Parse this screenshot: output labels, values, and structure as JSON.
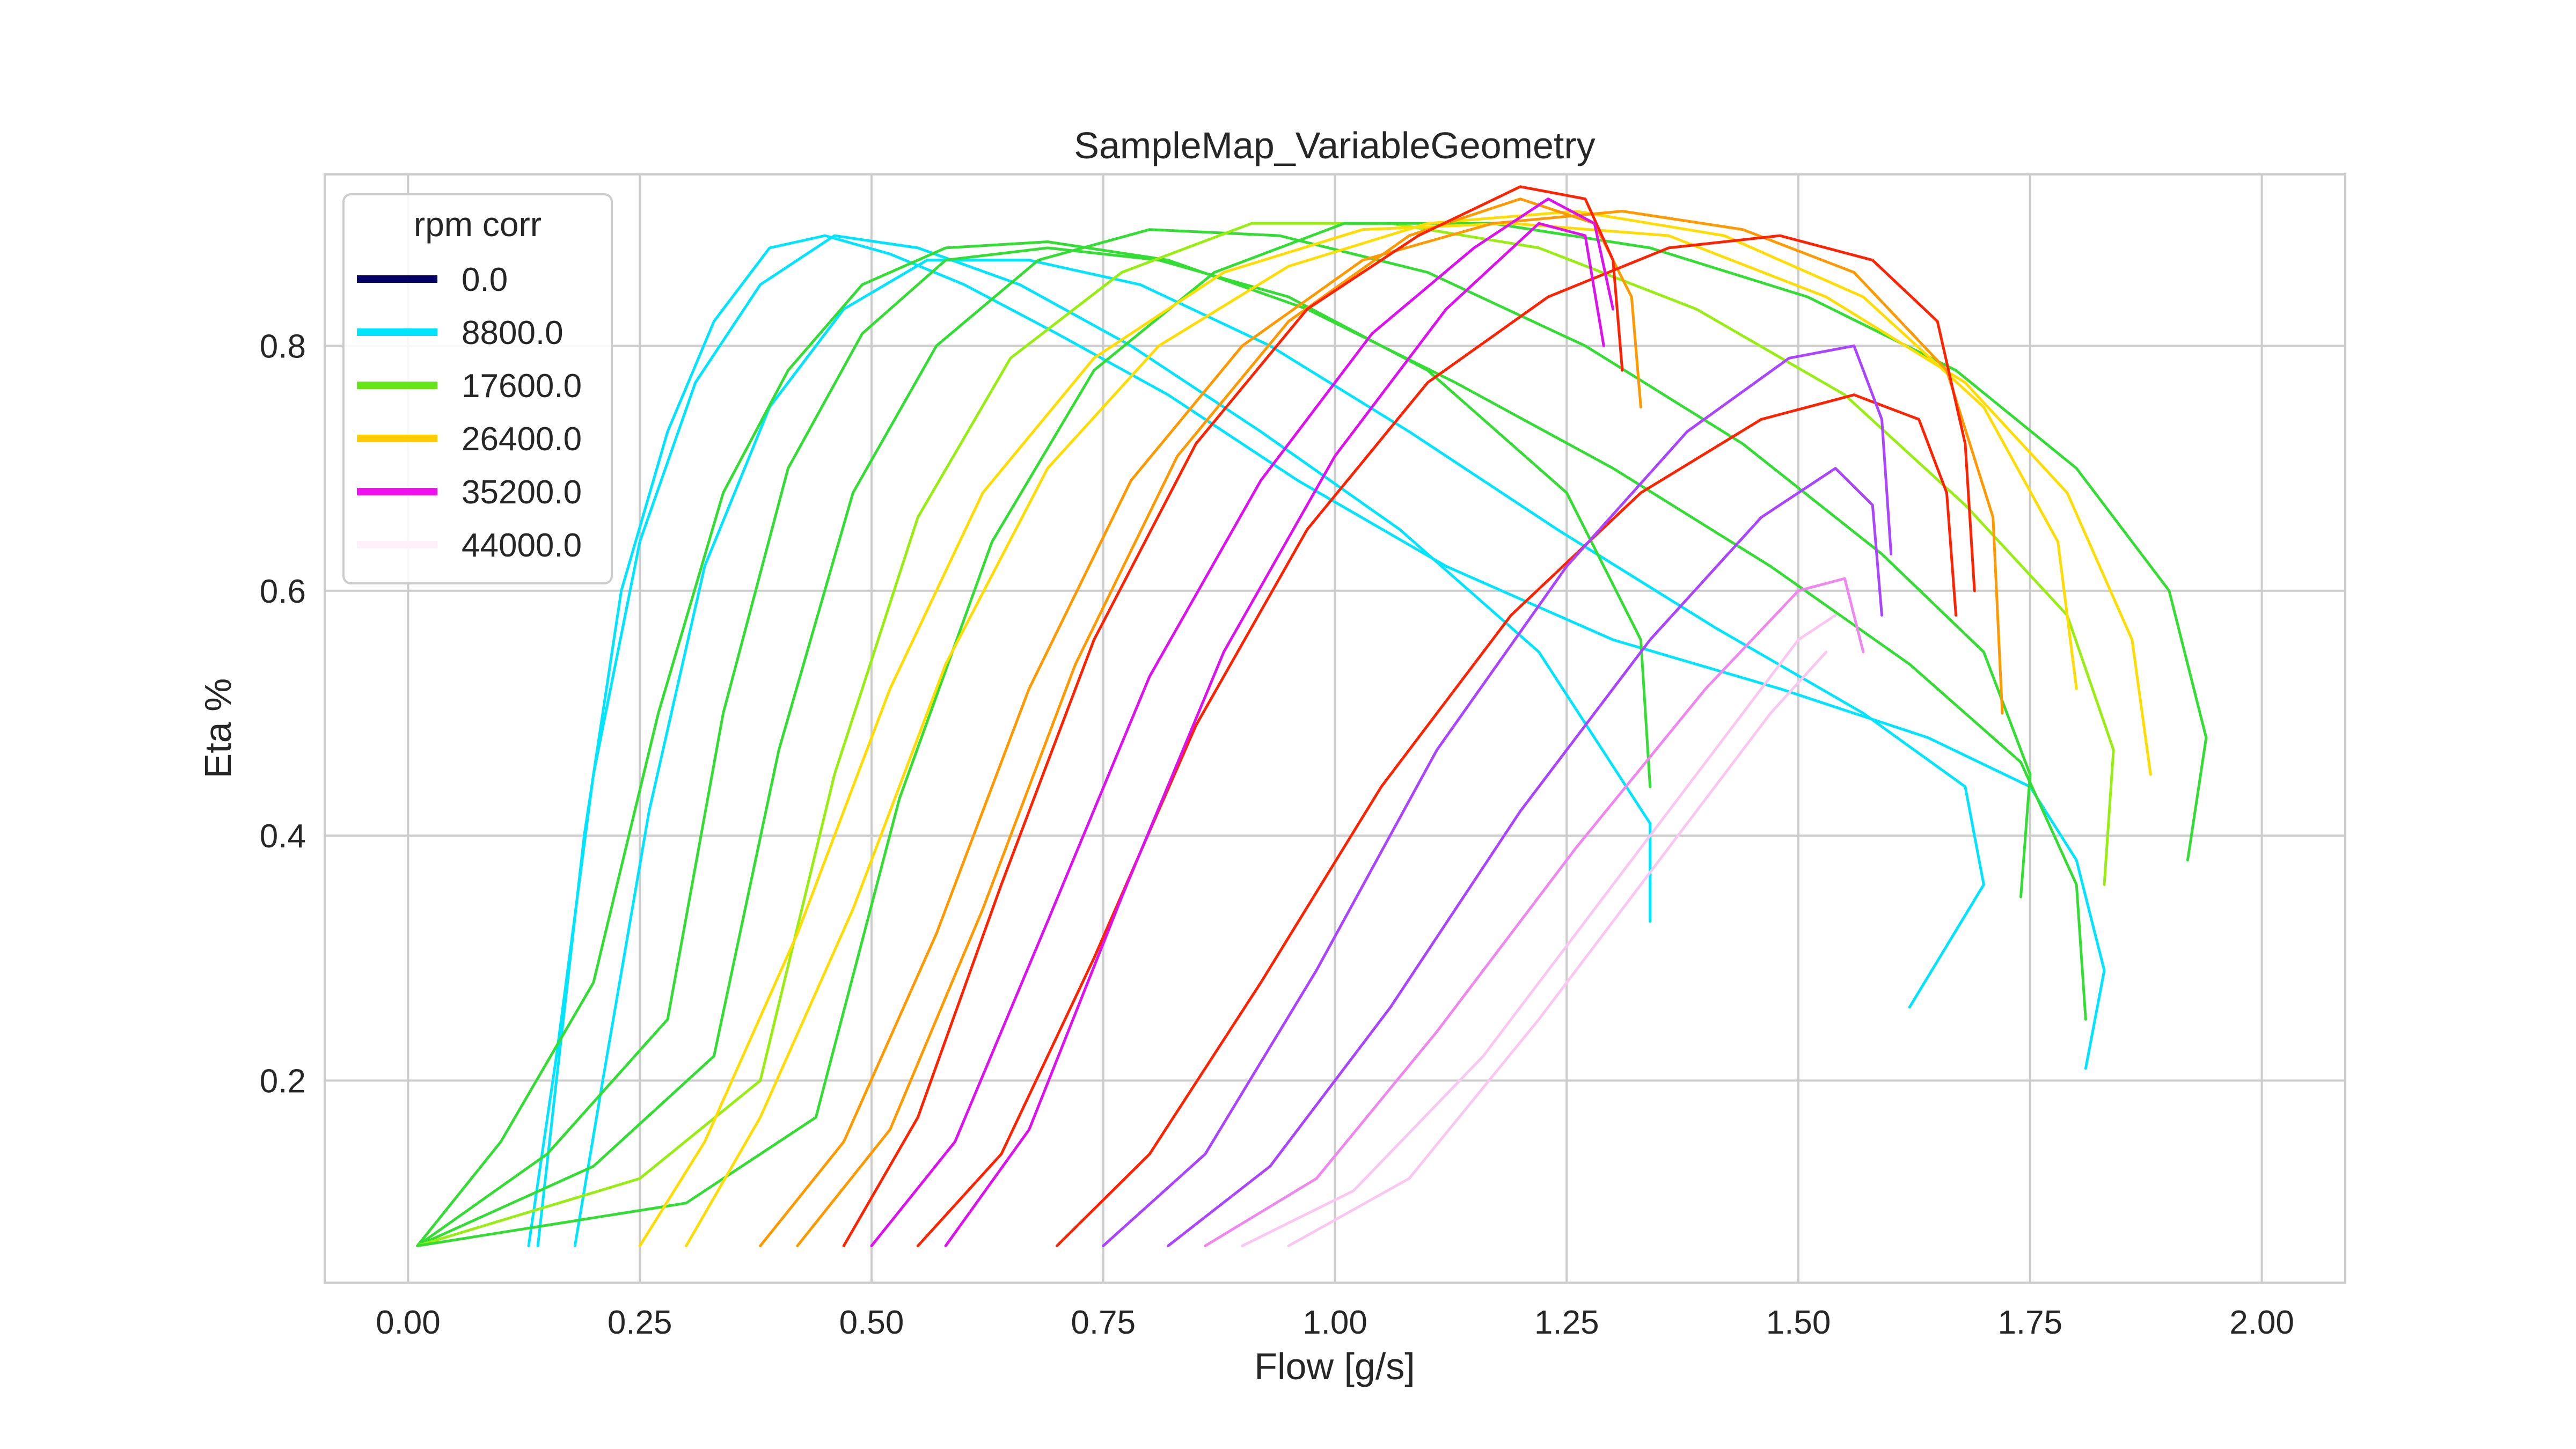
{
  "chart_data": {
    "type": "line",
    "title": "SampleMap_VariableGeometry",
    "xlabel": "Flow [g/s]",
    "ylabel": "Eta %",
    "xlim": [
      -0.09,
      2.09
    ],
    "ylim": [
      0.035,
      0.94
    ],
    "xticks": [
      "0.00",
      "0.25",
      "0.50",
      "0.75",
      "1.00",
      "1.25",
      "1.50",
      "1.75",
      "2.00"
    ],
    "yticks": [
      "0.2",
      "0.4",
      "0.6",
      "0.8"
    ],
    "grid": true,
    "legend": {
      "title": "rpm corr",
      "placement": "top-left",
      "entries": [
        {
          "label": "0.0",
          "color": "#000066"
        },
        {
          "label": "8800.0",
          "color": "#00e5ff"
        },
        {
          "label": "17600.0",
          "color": "#66e619"
        },
        {
          "label": "26400.0",
          "color": "#ffcc00"
        },
        {
          "label": "35200.0",
          "color": "#ee11ee"
        },
        {
          "label": "44000.0",
          "color": "#fff0fa"
        }
      ]
    },
    "colors": {
      "cyan": "#00e5ff",
      "green": "#33dd33",
      "lime": "#99ee11",
      "yellow": "#ffdd00",
      "orange": "#ff9900",
      "red": "#ff2200",
      "magenta": "#dd11ee",
      "violet": "#aa44ff",
      "pink": "#ee88ee",
      "lightpink": "#f8c8f0"
    },
    "series": [
      {
        "color": "cyan",
        "x": [
          0.14,
          0.16,
          0.19,
          0.23,
          0.28,
          0.33,
          0.39,
          0.45,
          0.52,
          0.6,
          0.7,
          0.82,
          0.96,
          1.12,
          1.3,
          1.48,
          1.64,
          1.75,
          1.8,
          1.83,
          1.81
        ],
        "y": [
          0.065,
          0.2,
          0.4,
          0.6,
          0.73,
          0.82,
          0.88,
          0.89,
          0.875,
          0.85,
          0.81,
          0.76,
          0.69,
          0.62,
          0.56,
          0.52,
          0.48,
          0.44,
          0.38,
          0.29,
          0.21
        ]
      },
      {
        "color": "cyan",
        "x": [
          0.13,
          0.16,
          0.2,
          0.25,
          0.31,
          0.38,
          0.46,
          0.55,
          0.66,
          0.78,
          0.92,
          1.07,
          1.22,
          1.34,
          1.34
        ],
        "y": [
          0.065,
          0.22,
          0.45,
          0.64,
          0.77,
          0.85,
          0.89,
          0.88,
          0.85,
          0.8,
          0.73,
          0.65,
          0.55,
          0.41,
          0.33
        ]
      },
      {
        "color": "cyan",
        "x": [
          0.18,
          0.21,
          0.26,
          0.32,
          0.39,
          0.47,
          0.56,
          0.67,
          0.79,
          0.93,
          1.08,
          1.24,
          1.41,
          1.57,
          1.68,
          1.7,
          1.62
        ],
        "y": [
          0.065,
          0.2,
          0.42,
          0.62,
          0.75,
          0.83,
          0.87,
          0.87,
          0.85,
          0.8,
          0.73,
          0.65,
          0.57,
          0.5,
          0.44,
          0.36,
          0.26
        ]
      },
      {
        "color": "green",
        "x": [
          0.01,
          0.1,
          0.2,
          0.27,
          0.34,
          0.41,
          0.49,
          0.58,
          0.69,
          0.82,
          0.97,
          1.13,
          1.3,
          1.47,
          1.62,
          1.74,
          1.8,
          1.81
        ],
        "y": [
          0.065,
          0.15,
          0.28,
          0.5,
          0.68,
          0.78,
          0.85,
          0.88,
          0.885,
          0.87,
          0.83,
          0.77,
          0.7,
          0.62,
          0.54,
          0.46,
          0.36,
          0.25
        ]
      },
      {
        "color": "green",
        "x": [
          0.01,
          0.15,
          0.28,
          0.34,
          0.41,
          0.49,
          0.58,
          0.69,
          0.81,
          0.95,
          1.1,
          1.25,
          1.33,
          1.34
        ],
        "y": [
          0.065,
          0.14,
          0.25,
          0.5,
          0.7,
          0.81,
          0.87,
          0.88,
          0.87,
          0.84,
          0.78,
          0.68,
          0.56,
          0.44
        ]
      },
      {
        "color": "green",
        "x": [
          0.01,
          0.2,
          0.33,
          0.4,
          0.48,
          0.57,
          0.68,
          0.8,
          0.94,
          1.1,
          1.27,
          1.44,
          1.59,
          1.7,
          1.75,
          1.74
        ],
        "y": [
          0.065,
          0.13,
          0.22,
          0.47,
          0.68,
          0.8,
          0.87,
          0.895,
          0.89,
          0.86,
          0.8,
          0.72,
          0.63,
          0.55,
          0.45,
          0.35
        ]
      },
      {
        "color": "lime",
        "x": [
          0.01,
          0.25,
          0.38,
          0.46,
          0.55,
          0.65,
          0.77,
          0.91,
          1.06,
          1.22,
          1.39,
          1.55,
          1.68,
          1.79,
          1.84,
          1.83
        ],
        "y": [
          0.065,
          0.12,
          0.2,
          0.45,
          0.66,
          0.79,
          0.86,
          0.9,
          0.9,
          0.88,
          0.83,
          0.76,
          0.67,
          0.58,
          0.47,
          0.36
        ]
      },
      {
        "color": "green",
        "x": [
          0.01,
          0.3,
          0.44,
          0.53,
          0.63,
          0.74,
          0.87,
          1.01,
          1.17,
          1.34,
          1.51,
          1.67,
          1.8,
          1.9,
          1.94,
          1.92
        ],
        "y": [
          0.065,
          0.1,
          0.17,
          0.43,
          0.64,
          0.78,
          0.86,
          0.9,
          0.9,
          0.88,
          0.84,
          0.78,
          0.7,
          0.6,
          0.48,
          0.38
        ]
      },
      {
        "color": "yellow",
        "x": [
          0.25,
          0.32,
          0.42,
          0.52,
          0.62,
          0.74,
          0.88,
          1.03,
          1.19,
          1.36,
          1.53,
          1.68,
          1.79,
          1.86,
          1.88
        ],
        "y": [
          0.065,
          0.15,
          0.32,
          0.52,
          0.68,
          0.79,
          0.86,
          0.895,
          0.9,
          0.89,
          0.84,
          0.77,
          0.68,
          0.56,
          0.45
        ]
      },
      {
        "color": "yellow",
        "x": [
          0.3,
          0.38,
          0.48,
          0.58,
          0.69,
          0.81,
          0.95,
          1.1,
          1.26,
          1.42,
          1.57,
          1.7,
          1.78,
          1.8
        ],
        "y": [
          0.065,
          0.17,
          0.34,
          0.54,
          0.7,
          0.8,
          0.865,
          0.9,
          0.91,
          0.89,
          0.84,
          0.75,
          0.64,
          0.52
        ]
      },
      {
        "color": "orange",
        "x": [
          0.38,
          0.47,
          0.57,
          0.67,
          0.78,
          0.9,
          1.03,
          1.17,
          1.31,
          1.44,
          1.56,
          1.66,
          1.71,
          1.72
        ],
        "y": [
          0.065,
          0.15,
          0.32,
          0.52,
          0.69,
          0.8,
          0.87,
          0.9,
          0.91,
          0.895,
          0.86,
          0.78,
          0.66,
          0.5
        ]
      },
      {
        "color": "orange",
        "x": [
          0.42,
          0.52,
          0.62,
          0.72,
          0.83,
          0.95,
          1.08,
          1.2,
          1.28,
          1.32,
          1.33
        ],
        "y": [
          0.065,
          0.16,
          0.34,
          0.54,
          0.71,
          0.82,
          0.89,
          0.92,
          0.9,
          0.84,
          0.75
        ]
      },
      {
        "color": "red",
        "x": [
          0.47,
          0.55,
          0.64,
          0.74,
          0.85,
          0.97,
          1.09,
          1.2,
          1.27,
          1.3,
          1.31
        ],
        "y": [
          0.065,
          0.17,
          0.36,
          0.56,
          0.72,
          0.83,
          0.89,
          0.93,
          0.92,
          0.87,
          0.78
        ]
      },
      {
        "color": "red",
        "x": [
          0.55,
          0.64,
          0.74,
          0.85,
          0.97,
          1.1,
          1.23,
          1.36,
          1.48,
          1.58,
          1.65,
          1.68,
          1.69
        ],
        "y": [
          0.065,
          0.14,
          0.3,
          0.49,
          0.65,
          0.77,
          0.84,
          0.88,
          0.89,
          0.87,
          0.82,
          0.72,
          0.6
        ]
      },
      {
        "color": "red",
        "x": [
          0.7,
          0.8,
          0.92,
          1.05,
          1.19,
          1.33,
          1.46,
          1.56,
          1.63,
          1.66,
          1.67
        ],
        "y": [
          0.065,
          0.14,
          0.28,
          0.44,
          0.58,
          0.68,
          0.74,
          0.76,
          0.74,
          0.68,
          0.58
        ]
      },
      {
        "color": "magenta",
        "x": [
          0.5,
          0.59,
          0.69,
          0.8,
          0.92,
          1.04,
          1.15,
          1.23,
          1.28,
          1.3
        ],
        "y": [
          0.065,
          0.15,
          0.33,
          0.53,
          0.69,
          0.81,
          0.88,
          0.92,
          0.9,
          0.83
        ]
      },
      {
        "color": "magenta",
        "x": [
          0.58,
          0.67,
          0.77,
          0.88,
          1.0,
          1.12,
          1.22,
          1.27,
          1.29
        ],
        "y": [
          0.065,
          0.16,
          0.35,
          0.55,
          0.71,
          0.83,
          0.9,
          0.89,
          0.8
        ]
      },
      {
        "color": "violet",
        "x": [
          0.75,
          0.86,
          0.98,
          1.11,
          1.25,
          1.38,
          1.49,
          1.56,
          1.59,
          1.6
        ],
        "y": [
          0.065,
          0.14,
          0.29,
          0.47,
          0.62,
          0.73,
          0.79,
          0.8,
          0.74,
          0.63
        ]
      },
      {
        "color": "violet",
        "x": [
          0.82,
          0.93,
          1.06,
          1.2,
          1.34,
          1.46,
          1.54,
          1.58,
          1.59
        ],
        "y": [
          0.065,
          0.13,
          0.26,
          0.42,
          0.56,
          0.66,
          0.7,
          0.67,
          0.58
        ]
      },
      {
        "color": "pink",
        "x": [
          0.86,
          0.98,
          1.11,
          1.26,
          1.4,
          1.5,
          1.55,
          1.57
        ],
        "y": [
          0.065,
          0.12,
          0.24,
          0.39,
          0.52,
          0.6,
          0.61,
          0.55
        ]
      },
      {
        "color": "lightpink",
        "x": [
          0.9,
          1.02,
          1.16,
          1.3,
          1.42,
          1.5,
          1.54
        ],
        "y": [
          0.065,
          0.11,
          0.22,
          0.36,
          0.48,
          0.56,
          0.58
        ]
      },
      {
        "color": "lightpink",
        "x": [
          0.95,
          1.08,
          1.22,
          1.36,
          1.47,
          1.53
        ],
        "y": [
          0.065,
          0.12,
          0.25,
          0.39,
          0.5,
          0.55
        ]
      }
    ]
  }
}
